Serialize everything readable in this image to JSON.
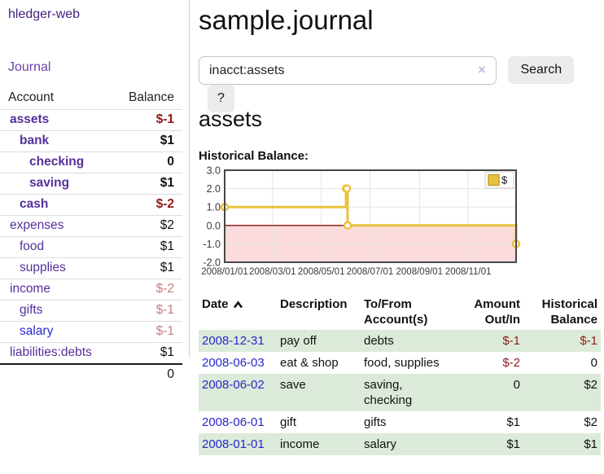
{
  "app": {
    "brand": "hledger-web"
  },
  "sidebar": {
    "journal_label": "Journal",
    "headers": {
      "account": "Account",
      "balance": "Balance"
    },
    "accounts": [
      {
        "name": "assets",
        "balance": "$-1",
        "level": 1,
        "bold": true,
        "name_color": "purple",
        "balance_color": "darkred"
      },
      {
        "name": "bank",
        "balance": "$1",
        "level": 2,
        "bold": true,
        "name_color": "purple",
        "balance_color": "black"
      },
      {
        "name": "checking",
        "balance": "0",
        "level": 3,
        "bold": true,
        "name_color": "purple",
        "balance_color": "black"
      },
      {
        "name": "saving",
        "balance": "$1",
        "level": 3,
        "bold": true,
        "name_color": "purple",
        "balance_color": "black"
      },
      {
        "name": "cash",
        "balance": "$-2",
        "level": 2,
        "bold": true,
        "name_color": "purple",
        "balance_color": "darkred"
      },
      {
        "name": "expenses",
        "balance": "$2",
        "level": 1,
        "bold": false,
        "name_color": "purple",
        "balance_color": "black"
      },
      {
        "name": "food",
        "balance": "$1",
        "level": 2,
        "bold": false,
        "name_color": "purple",
        "balance_color": "black"
      },
      {
        "name": "supplies",
        "balance": "$1",
        "level": 2,
        "bold": false,
        "name_color": "purple",
        "balance_color": "black"
      },
      {
        "name": "income",
        "balance": "$-2",
        "level": 1,
        "bold": false,
        "name_color": "purple",
        "balance_color": "rosy"
      },
      {
        "name": "gifts",
        "balance": "$-1",
        "level": 2,
        "bold": false,
        "name_color": "purple",
        "balance_color": "rosy"
      },
      {
        "name": "salary",
        "balance": "$-1",
        "level": 2,
        "bold": false,
        "name_color": "blue",
        "balance_color": "rosy"
      },
      {
        "name": "liabilities:debts",
        "balance": "$1",
        "level": 1,
        "bold": false,
        "name_color": "purple",
        "balance_color": "black"
      }
    ],
    "total": "0"
  },
  "main": {
    "title": "sample.journal",
    "search": {
      "value": "inacct:assets",
      "clear_label": "×",
      "button_label": "Search",
      "help_label": "?"
    },
    "account_heading": "assets",
    "section_label": "Historical Balance:"
  },
  "chart_data": {
    "type": "line",
    "title": "Historical Balance",
    "step": true,
    "series": [
      {
        "name": "$",
        "points": [
          [
            "2008-01-01",
            1
          ],
          [
            "2008-06-01",
            2
          ],
          [
            "2008-06-02",
            2
          ],
          [
            "2008-06-03",
            0
          ],
          [
            "2008-12-31",
            -1
          ]
        ]
      }
    ],
    "xlim": [
      "2008-01-01",
      "2008-12-31"
    ],
    "ylim": [
      -2,
      3
    ],
    "x_ticks": [
      "2008/01/01",
      "2008/03/01",
      "2008/05/01",
      "2008/07/01",
      "2008/09/01",
      "2008/11/01"
    ],
    "y_ticks": [
      3.0,
      2.0,
      1.0,
      0.0,
      -1.0,
      -2.0
    ],
    "grid": true,
    "legend": {
      "label": "$",
      "position": "top-right"
    },
    "line_color": "#e9c23f",
    "marker_fill": "#ffffff",
    "negative_region_fill": "#fbdbdb",
    "zero_line_color": "#871111",
    "border_color": "#474747",
    "grid_color": "#e4e4e4",
    "legend_swatch_border": "#c3a029"
  },
  "transactions": {
    "headers": [
      {
        "l1": "Date",
        "l2": ""
      },
      {
        "l1": "Description",
        "l2": ""
      },
      {
        "l1": "To/From",
        "l2": "Account(s)"
      },
      {
        "l1": "Amount",
        "l2": "Out/In"
      },
      {
        "l1": "Historical",
        "l2": "Balance"
      }
    ],
    "rows": [
      {
        "date": "2008-12-31",
        "description": "pay off",
        "accounts": "debts",
        "amount": "$-1",
        "balance": "$-1"
      },
      {
        "date": "2008-06-03",
        "description": "eat & shop",
        "accounts": "food, supplies",
        "amount": "$-2",
        "balance": "0"
      },
      {
        "date": "2008-06-02",
        "description": "save",
        "accounts": "saving, checking",
        "amount": "0",
        "balance": "$2"
      },
      {
        "date": "2008-06-01",
        "description": "gift",
        "accounts": "gifts",
        "amount": "$1",
        "balance": "$2"
      },
      {
        "date": "2008-01-01",
        "description": "income",
        "accounts": "salary",
        "amount": "$1",
        "balance": "$1"
      }
    ]
  }
}
